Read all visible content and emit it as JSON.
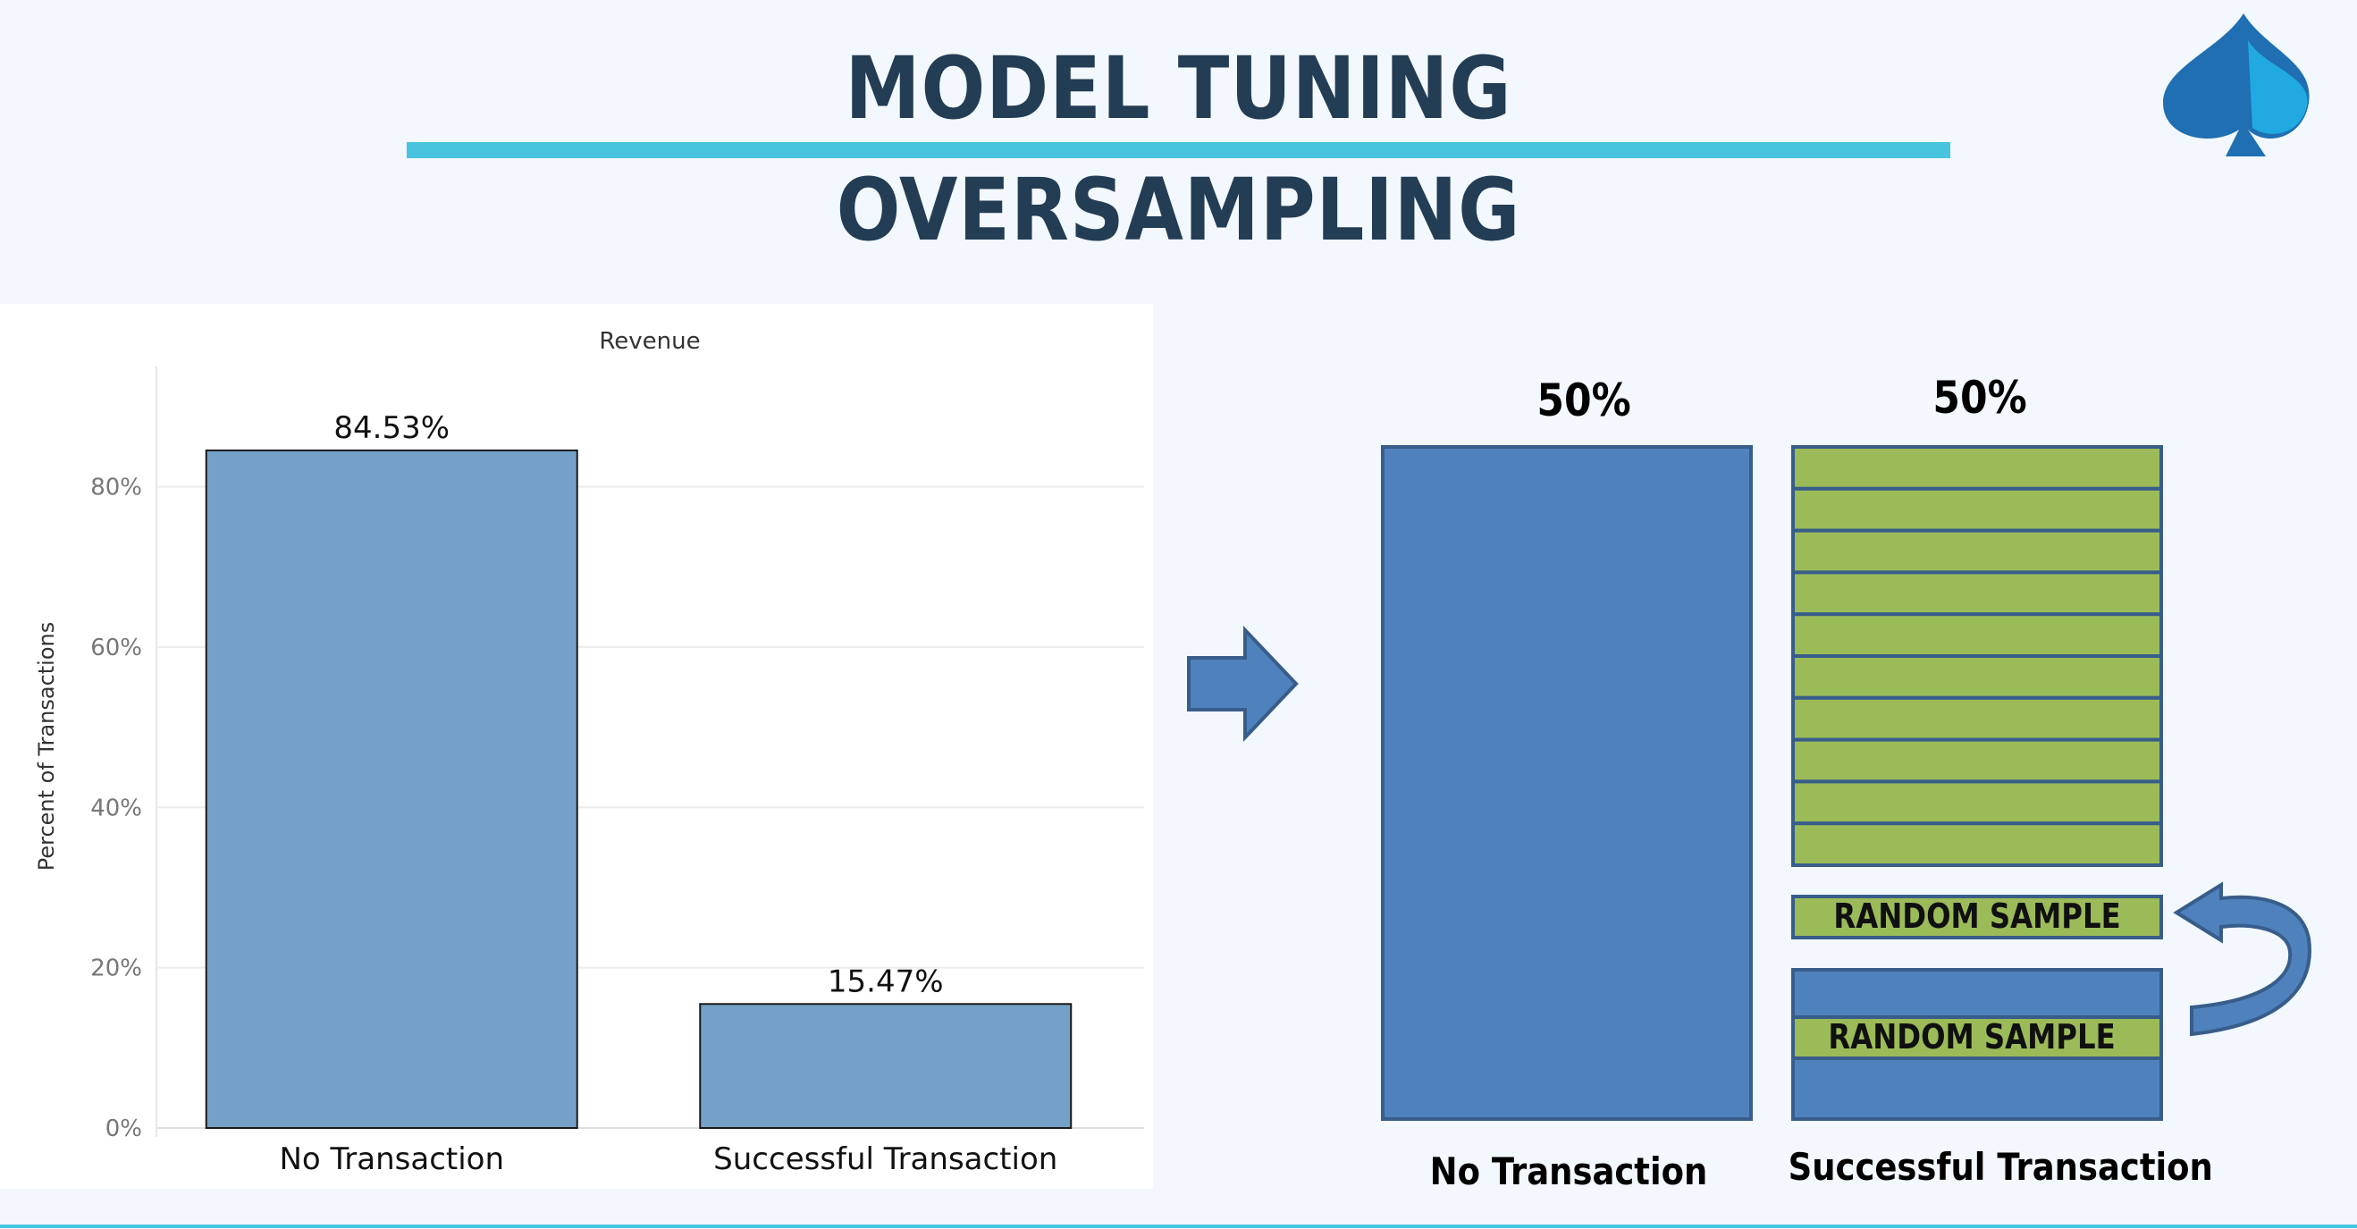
{
  "header": {
    "title": "MODEL TUNING",
    "subtitle": "OVERSAMPLING",
    "accent_color": "#48c4df",
    "title_color": "#233d55",
    "logo_icon": "spade-icon"
  },
  "chart_data": {
    "type": "bar",
    "title": "Revenue",
    "xlabel": "",
    "ylabel": "Percent of Transactions",
    "categories": [
      "No Transaction",
      "Successful Transaction"
    ],
    "values": [
      84.53,
      15.47
    ],
    "data_labels": [
      "84.53%",
      "15.47%"
    ],
    "yticks": [
      0,
      20,
      40,
      60,
      80
    ],
    "ytick_labels": [
      "0%",
      "20%",
      "40%",
      "60%",
      "80%"
    ],
    "ylim": [
      0,
      95
    ],
    "grid": true,
    "bar_color": "#75a1c8"
  },
  "transition_icon": "arrow-right-icon",
  "result": {
    "left_percent": "50%",
    "right_percent": "50%",
    "left_label": "No Transaction",
    "right_label": "Successful Transaction",
    "random_sample_label": "RANDOM SAMPLE",
    "duplicated_sample_count": 10,
    "majority_color": "#4f81bd",
    "minority_color": "#9bbb59",
    "curved_arrow_icon": "curved-arrow-icon"
  }
}
